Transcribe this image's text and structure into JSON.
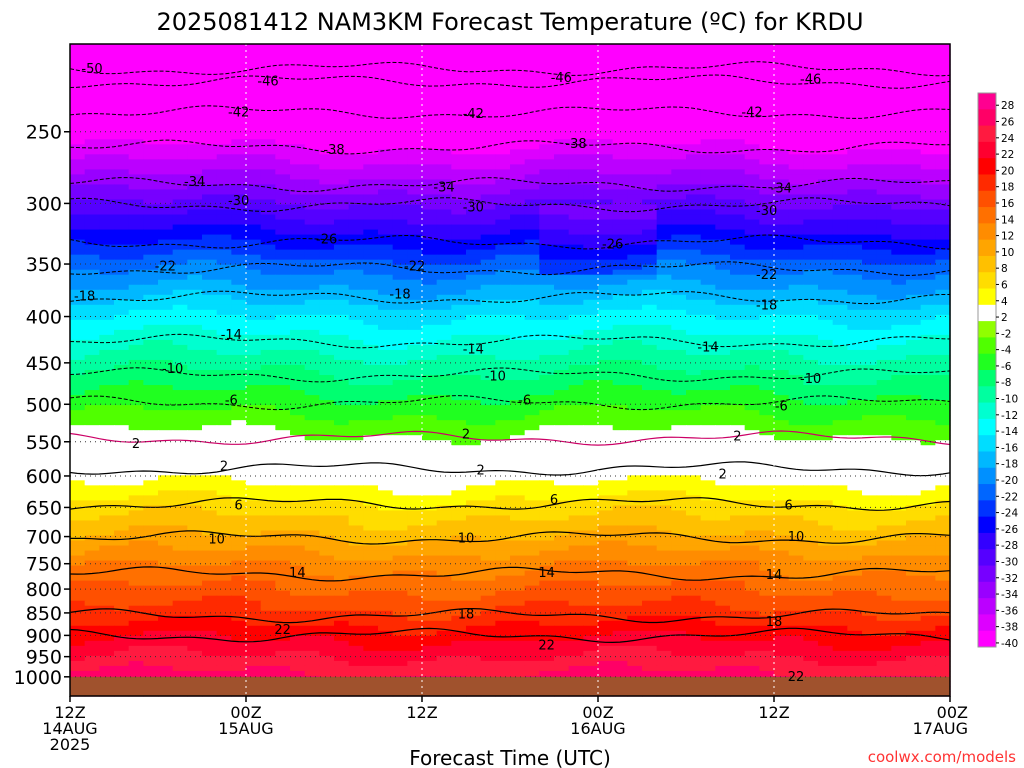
{
  "chart_data": {
    "type": "heatmap",
    "title": "2025081412 NAM3KM Forecast Temperature (ºC) for KRDU",
    "xlabel": "Forecast Time (UTC)",
    "ylabel": "",
    "y_scale": "log-pressure",
    "y_inverted": true,
    "ylim": [
      1050,
      200
    ],
    "x_ticks": [
      {
        "t": 0,
        "line1": "12Z",
        "line2": "14AUG",
        "line3": "2025"
      },
      {
        "t": 12,
        "line1": "00Z",
        "line2": "15AUG",
        "line3": ""
      },
      {
        "t": 24,
        "line1": "12Z",
        "line2": "",
        "line3": ""
      },
      {
        "t": 36,
        "line1": "00Z",
        "line2": "16AUG",
        "line3": ""
      },
      {
        "t": 48,
        "line1": "12Z",
        "line2": "",
        "line3": ""
      },
      {
        "t": 60,
        "line1": "00Z",
        "line2": "17AUG",
        "line3": ""
      }
    ],
    "xlim": [
      0,
      60
    ],
    "y_ticks": [
      250,
      300,
      350,
      400,
      450,
      500,
      550,
      600,
      650,
      700,
      750,
      800,
      850,
      900,
      950,
      1000
    ],
    "colorbar": {
      "labels": [
        28,
        26,
        24,
        22,
        20,
        18,
        16,
        14,
        12,
        10,
        8,
        6,
        4,
        2,
        -2,
        -4,
        -6,
        -8,
        -10,
        -12,
        -14,
        -16,
        -18,
        -20,
        -22,
        -24,
        -26,
        -28,
        -30,
        -32,
        -34,
        -36,
        -38,
        -40
      ],
      "colors": [
        "#ff0090",
        "#ff0066",
        "#ff1a40",
        "#ff0030",
        "#ff0000",
        "#ff2a00",
        "#ff5000",
        "#ff7000",
        "#ff8c00",
        "#ffa500",
        "#ffc000",
        "#ffdd00",
        "#ffff00",
        "#ffffff",
        "#90ff00",
        "#50ff00",
        "#20ff20",
        "#00ff70",
        "#00ffa0",
        "#00ffd0",
        "#00ffff",
        "#00ddff",
        "#00b8ff",
        "#0090ff",
        "#0066ff",
        "#0033ff",
        "#0000ff",
        "#3300ff",
        "#5500ff",
        "#7700ff",
        "#9900ff",
        "#bb00ff",
        "#dd00ff",
        "#ff00ff"
      ]
    },
    "contour_labels": [
      {
        "v": "-50",
        "t": 1.5,
        "p": 213
      },
      {
        "v": "-46",
        "t": 13.5,
        "p": 220
      },
      {
        "v": "-46",
        "t": 33.5,
        "p": 218
      },
      {
        "v": "-46",
        "t": 50.5,
        "p": 219
      },
      {
        "v": "-42",
        "t": 11.5,
        "p": 238
      },
      {
        "v": "-42",
        "t": 27.5,
        "p": 239
      },
      {
        "v": "-42",
        "t": 46.5,
        "p": 238
      },
      {
        "v": "-38",
        "t": 18,
        "p": 262
      },
      {
        "v": "-38",
        "t": 34.5,
        "p": 258
      },
      {
        "v": "-34",
        "t": 8.5,
        "p": 284
      },
      {
        "v": "-34",
        "t": 25.5,
        "p": 288
      },
      {
        "v": "-34",
        "t": 48.5,
        "p": 289
      },
      {
        "v": "-30",
        "t": 11.5,
        "p": 298
      },
      {
        "v": "-30",
        "t": 27.5,
        "p": 303
      },
      {
        "v": "-30",
        "t": 47.5,
        "p": 306
      },
      {
        "v": "-26",
        "t": 17.5,
        "p": 329
      },
      {
        "v": "-26",
        "t": 37,
        "p": 333
      },
      {
        "v": "-22",
        "t": 6.5,
        "p": 352
      },
      {
        "v": "-22",
        "t": 23.5,
        "p": 352
      },
      {
        "v": "-22",
        "t": 47.5,
        "p": 360
      },
      {
        "v": "-18",
        "t": 1,
        "p": 380
      },
      {
        "v": "-18",
        "t": 22.5,
        "p": 378
      },
      {
        "v": "-18",
        "t": 47.5,
        "p": 389
      },
      {
        "v": "-14",
        "t": 11,
        "p": 419
      },
      {
        "v": "-14",
        "t": 27.5,
        "p": 435
      },
      {
        "v": "-14",
        "t": 43.5,
        "p": 433
      },
      {
        "v": "-10",
        "t": 7,
        "p": 457
      },
      {
        "v": "-10",
        "t": 29,
        "p": 466
      },
      {
        "v": "-10",
        "t": 50.5,
        "p": 469
      },
      {
        "v": "-6",
        "t": 11,
        "p": 495
      },
      {
        "v": "-6",
        "t": 31,
        "p": 495
      },
      {
        "v": "-6",
        "t": 48.5,
        "p": 503
      },
      {
        "v": "2",
        "t": 4.5,
        "p": 553
      },
      {
        "v": "2",
        "t": 27,
        "p": 540
      },
      {
        "v": "2",
        "t": 45.5,
        "p": 543
      },
      {
        "v": "2",
        "t": 10.5,
        "p": 586
      },
      {
        "v": "2",
        "t": 28,
        "p": 592
      },
      {
        "v": "2",
        "t": 44.5,
        "p": 598
      },
      {
        "v": "6",
        "t": 11.5,
        "p": 647
      },
      {
        "v": "6",
        "t": 33,
        "p": 638
      },
      {
        "v": "6",
        "t": 49,
        "p": 647
      },
      {
        "v": "10",
        "t": 10,
        "p": 705
      },
      {
        "v": "10",
        "t": 27,
        "p": 703
      },
      {
        "v": "10",
        "t": 49.5,
        "p": 701
      },
      {
        "v": "14",
        "t": 15.5,
        "p": 768
      },
      {
        "v": "14",
        "t": 32.5,
        "p": 768
      },
      {
        "v": "14",
        "t": 48,
        "p": 772
      },
      {
        "v": "18",
        "t": 27,
        "p": 853
      },
      {
        "v": "18",
        "t": 48,
        "p": 870
      },
      {
        "v": "22",
        "t": 14.5,
        "p": 888
      },
      {
        "v": "22",
        "t": 32.5,
        "p": 924
      },
      {
        "v": "22",
        "t": 49.5,
        "p": 1000
      }
    ],
    "contour_levels": [
      -50,
      -46,
      -42,
      -38,
      -34,
      -30,
      -26,
      -22,
      -18,
      -14,
      -10,
      -6,
      2,
      2,
      6,
      10,
      14,
      18,
      22
    ],
    "grid": true,
    "legend": "colorbar-right"
  },
  "credit": "coolwx.com/models"
}
